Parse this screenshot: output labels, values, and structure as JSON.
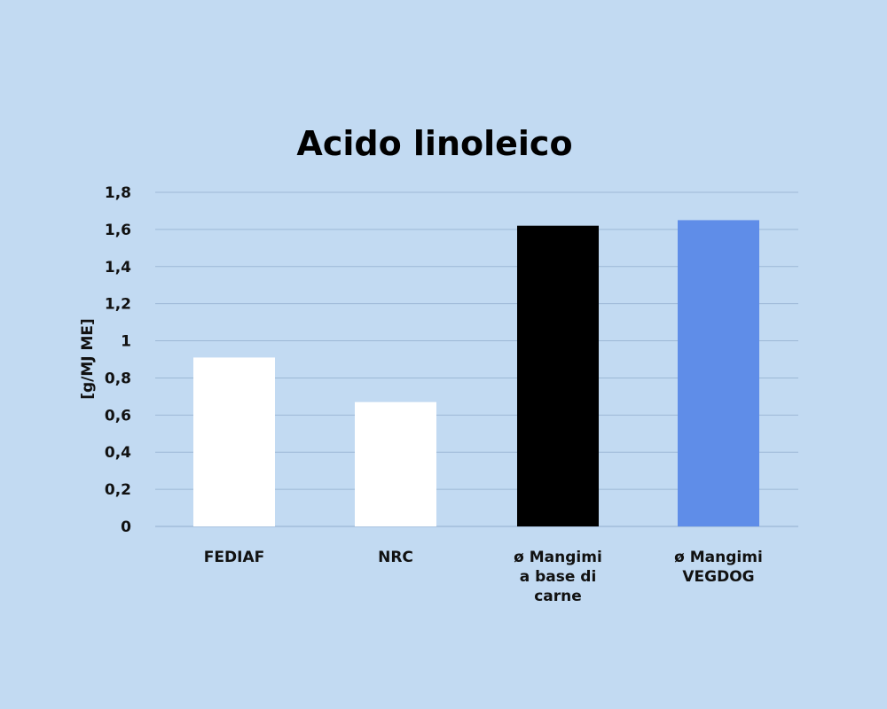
{
  "chart_data": {
    "type": "bar",
    "title": "Acido linoleico",
    "ylabel": "[g/MJ ME]",
    "xlabel": "",
    "ylim": [
      0,
      1.8
    ],
    "yticks": [
      "0",
      "0,2",
      "0,4",
      "0,6",
      "0,8",
      "1",
      "1,2",
      "1,4",
      "1,6",
      "1,8"
    ],
    "grid": true,
    "categories": [
      [
        "FEDIAF"
      ],
      [
        "NRC"
      ],
      [
        "ø Mangimi",
        "a base di",
        "carne"
      ],
      [
        "ø Mangimi",
        "VEGDOG"
      ]
    ],
    "values": [
      0.91,
      0.67,
      1.62,
      1.65
    ],
    "colors": [
      "#ffffff",
      "#ffffff",
      "#000000",
      "#5f8de8"
    ]
  }
}
